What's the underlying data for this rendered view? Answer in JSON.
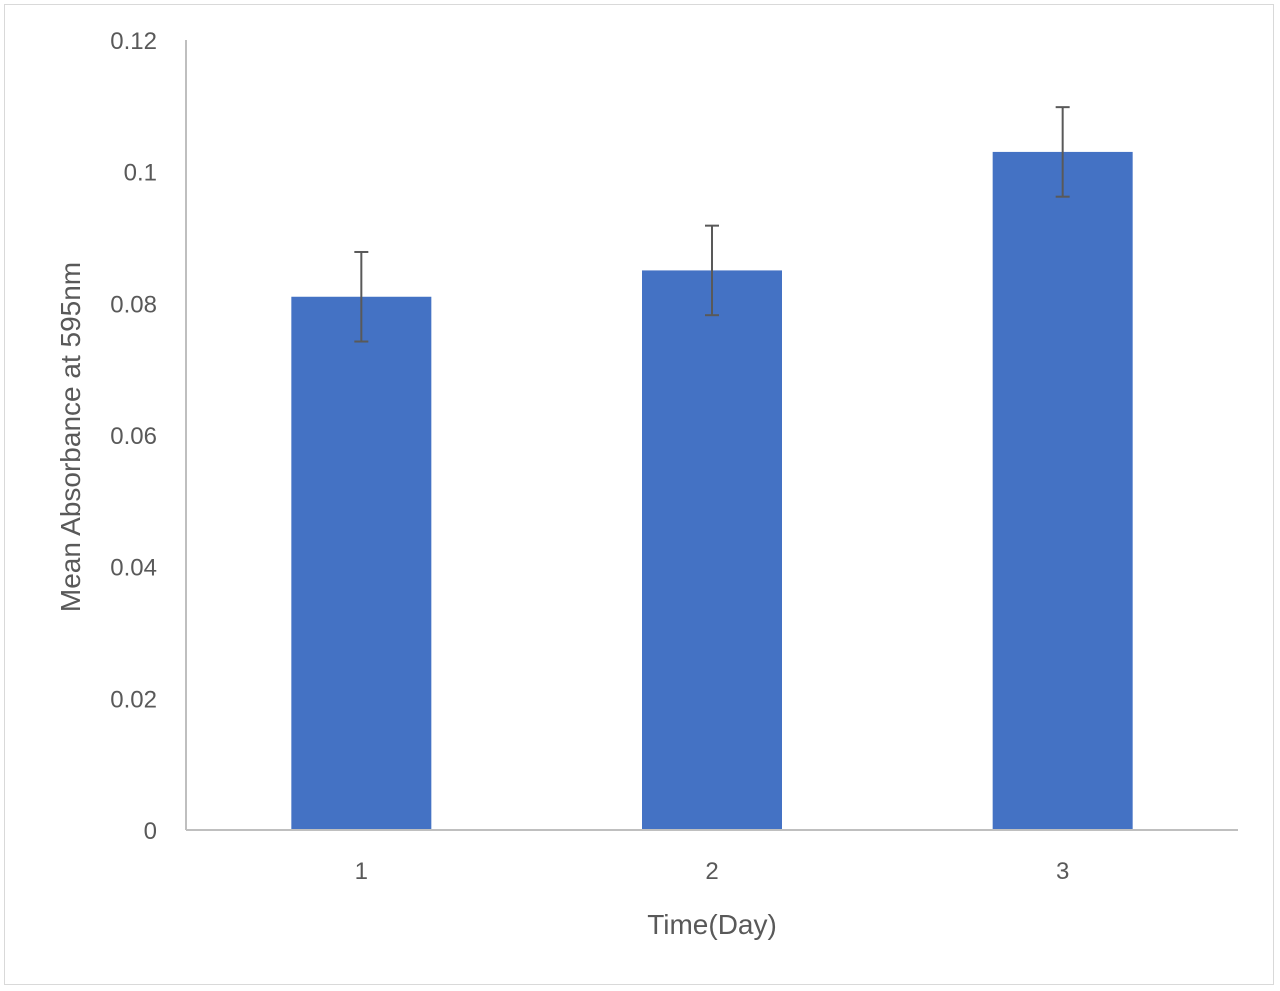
{
  "chart_data": {
    "type": "bar",
    "title": "",
    "xlabel": "Time(Day)",
    "ylabel": "Mean Absorbance at 595nm",
    "categories": [
      "1",
      "2",
      "3"
    ],
    "values": [
      0.081,
      0.085,
      0.103
    ],
    "error_bars": [
      0.0068,
      0.0068,
      0.0068
    ],
    "ylim": [
      0,
      0.12
    ],
    "yticks": [
      0,
      0.02,
      0.04,
      0.06,
      0.08,
      0.1,
      0.12
    ],
    "ytick_labels": [
      "0",
      "0.02",
      "0.04",
      "0.06",
      "0.08",
      "0.1",
      "0.12"
    ],
    "grid": false,
    "legend": "none",
    "colors": {
      "bar": "#4472c4",
      "error_bar": "#595959",
      "axis": "#bfbfbf",
      "text": "#595959"
    }
  }
}
